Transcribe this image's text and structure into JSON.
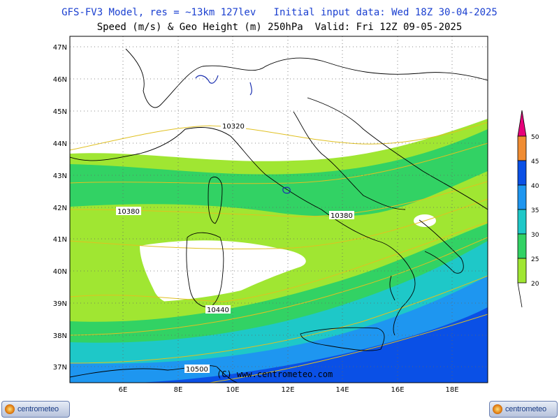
{
  "header": {
    "line1": "GFS-FV3 Model, res = ~13km 127lev   Initial input data: Wed 18Z 30-04-2025",
    "line2": "Speed (m/s) & Geo Height (m) 250hPa  Valid: Fri 12Z 09-05-2025"
  },
  "map": {
    "lat_ticks": [
      "47N",
      "46N",
      "45N",
      "44N",
      "43N",
      "42N",
      "41N",
      "40N",
      "39N",
      "38N",
      "37N"
    ],
    "lon_ticks": [
      "6E",
      "8E",
      "10E",
      "12E",
      "14E",
      "16E",
      "18E"
    ],
    "contour_labels": [
      "10320",
      "10380",
      "10380",
      "10440",
      "10500"
    ],
    "watermark": "(C) www.centrometeo.com",
    "colors": {
      "ocean": "#ffffff",
      "lt20": "#ffffff",
      "c20_25": "#a0e632",
      "c25_30": "#32d264",
      "c30_35": "#1ec8c8",
      "c35_40": "#1e96f0",
      "c40_45": "#0a50e6",
      "c45_50": "#f08c32",
      "c50p": "#e6007a",
      "contour": "#e0c020",
      "coast": "#000000"
    }
  },
  "legend": {
    "labels": [
      "20",
      "25",
      "30",
      "35",
      "40",
      "45",
      "50"
    ]
  },
  "logos": {
    "left": "centrometeo",
    "right": "centrometeo"
  }
}
